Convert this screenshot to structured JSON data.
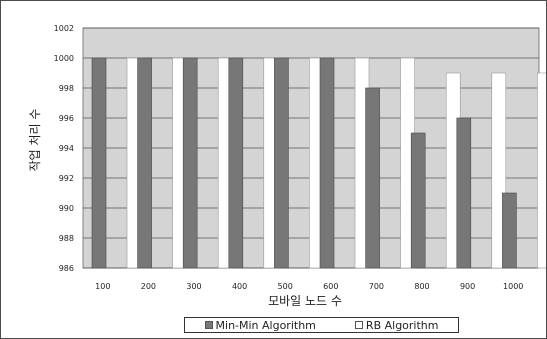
{
  "chart_data": {
    "type": "bar",
    "title": "",
    "xlabel": "모바일 노드 수",
    "ylabel": "작업 처리 수",
    "categories": [
      "100",
      "200",
      "300",
      "400",
      "500",
      "600",
      "700",
      "800",
      "900",
      "1000"
    ],
    "series": [
      {
        "name": "Min-Min Algorithm",
        "values": [
          1000,
          1000,
          1000,
          1000,
          1000,
          1000,
          998,
          995,
          996,
          991
        ],
        "color": "#777777"
      },
      {
        "name": "RB Algorithm",
        "values": [
          1000,
          1000,
          1000,
          1000,
          1000,
          1000,
          1000,
          999,
          999,
          999
        ],
        "color": "#ffffff"
      }
    ],
    "ylim": [
      986,
      1002
    ],
    "yticks": [
      "1002",
      "1000",
      "998",
      "996",
      "994",
      "992",
      "990",
      "988",
      "986"
    ],
    "grid": true,
    "legend_position": "bottom",
    "plot_background": "#d4d4d4"
  }
}
